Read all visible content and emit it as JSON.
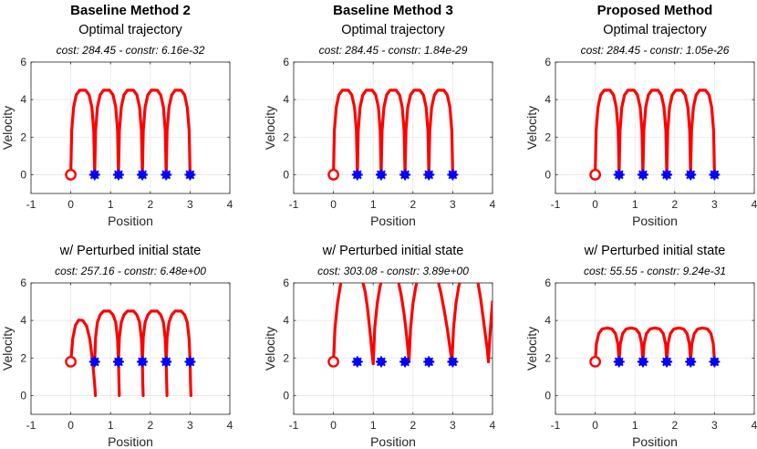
{
  "chart_data": [
    {
      "type": "line",
      "method_title": "Baseline Method 2",
      "title": "Optimal trajectory",
      "annotation": "cost: 284.45 - constr: 6.16e-32",
      "xlabel": "Position",
      "ylabel": "Velocity",
      "xlim": [
        -1,
        4
      ],
      "ylim": [
        -1,
        6
      ],
      "xticks": [
        "-1",
        "0",
        "1",
        "2",
        "3",
        "4"
      ],
      "yticks": [
        "0",
        "2",
        "4",
        "6"
      ],
      "grid": true,
      "start": [
        0,
        0
      ],
      "markers": [
        [
          0.6,
          0
        ],
        [
          1.2,
          0
        ],
        [
          1.8,
          0
        ],
        [
          2.4,
          0
        ],
        [
          3.0,
          0
        ]
      ],
      "series": [
        {
          "name": "trajectory",
          "x": [
            0,
            0.023,
            0.07,
            0.138,
            0.223,
            0.3,
            0.377,
            0.462,
            0.53,
            0.577,
            0.6
          ],
          "y": [
            0,
            2.34,
            3.6,
            4.25,
            4.5,
            4.5,
            4.5,
            4.25,
            3.6,
            2.34,
            0
          ],
          "repeat": 5,
          "repeat_dx": 0.6,
          "clip_top": false
        }
      ]
    },
    {
      "type": "line",
      "method_title": "Baseline Method 3",
      "title": "Optimal trajectory",
      "annotation": "cost: 284.45 - constr: 1.84e-29",
      "xlabel": "Position",
      "ylabel": "Velocity",
      "xlim": [
        -1,
        4
      ],
      "ylim": [
        -1,
        6
      ],
      "xticks": [
        "-1",
        "0",
        "1",
        "2",
        "3",
        "4"
      ],
      "yticks": [
        "0",
        "2",
        "4",
        "6"
      ],
      "grid": true,
      "start": [
        0,
        0
      ],
      "markers": [
        [
          0.6,
          0
        ],
        [
          1.2,
          0
        ],
        [
          1.8,
          0
        ],
        [
          2.4,
          0
        ],
        [
          3.0,
          0
        ]
      ],
      "series": [
        {
          "name": "trajectory",
          "x": [
            0,
            0.023,
            0.07,
            0.138,
            0.223,
            0.3,
            0.377,
            0.462,
            0.53,
            0.577,
            0.6
          ],
          "y": [
            0,
            2.34,
            3.6,
            4.25,
            4.5,
            4.5,
            4.5,
            4.25,
            3.6,
            2.34,
            0
          ],
          "repeat": 5,
          "repeat_dx": 0.6,
          "clip_top": false
        }
      ]
    },
    {
      "type": "line",
      "method_title": "Proposed Method",
      "title": "Optimal trajectory",
      "annotation": "cost: 284.45 - constr: 1.05e-26",
      "xlabel": "Position",
      "ylabel": "Velocity",
      "xlim": [
        -1,
        4
      ],
      "ylim": [
        -1,
        6
      ],
      "xticks": [
        "-1",
        "0",
        "1",
        "2",
        "3",
        "4"
      ],
      "yticks": [
        "0",
        "2",
        "4",
        "6"
      ],
      "grid": true,
      "start": [
        0,
        0
      ],
      "markers": [
        [
          0.6,
          0
        ],
        [
          1.2,
          0
        ],
        [
          1.8,
          0
        ],
        [
          2.4,
          0
        ],
        [
          3.0,
          0
        ]
      ],
      "series": [
        {
          "name": "trajectory",
          "x": [
            0,
            0.023,
            0.07,
            0.138,
            0.223,
            0.3,
            0.377,
            0.462,
            0.53,
            0.577,
            0.6
          ],
          "y": [
            0,
            2.34,
            3.6,
            4.25,
            4.5,
            4.5,
            4.5,
            4.25,
            3.6,
            2.34,
            0
          ],
          "repeat": 5,
          "repeat_dx": 0.6,
          "clip_top": false
        }
      ]
    },
    {
      "type": "line",
      "method_title": "",
      "title": "w/ Perturbed initial state",
      "annotation": "cost: 257.16 - constr: 6.48e+00",
      "xlabel": "Position",
      "ylabel": "Velocity",
      "xlim": [
        -1,
        4
      ],
      "ylim": [
        -1,
        6
      ],
      "xticks": [
        "-1",
        "0",
        "1",
        "2",
        "3",
        "4"
      ],
      "yticks": [
        "0",
        "2",
        "4",
        "6"
      ],
      "grid": true,
      "start": [
        0,
        1.8
      ],
      "markers": [
        [
          0.6,
          1.8
        ],
        [
          1.2,
          1.8
        ],
        [
          1.8,
          1.8
        ],
        [
          2.4,
          1.8
        ],
        [
          3.0,
          1.8
        ]
      ],
      "series": [
        {
          "name": "segment-1",
          "x": [
            0,
            0.05,
            0.12,
            0.2,
            0.3,
            0.4,
            0.48,
            0.55,
            0.6,
            0.62
          ],
          "y": [
            1.8,
            3.05,
            3.75,
            4.02,
            4.0,
            3.7,
            3.0,
            1.8,
            0.6,
            0
          ]
        },
        {
          "name": "segment-2",
          "x": [
            0.6,
            0.623,
            0.67,
            0.738,
            0.823,
            0.9,
            0.977,
            1.062,
            1.13,
            1.177,
            1.2,
            1.21,
            1.22
          ],
          "y": [
            1.8,
            3.1,
            3.9,
            4.3,
            4.5,
            4.5,
            4.5,
            4.3,
            3.9,
            3.0,
            1.8,
            0.8,
            0
          ]
        },
        {
          "name": "segment-3",
          "x": [
            1.2,
            1.223,
            1.27,
            1.338,
            1.423,
            1.5,
            1.577,
            1.662,
            1.73,
            1.777,
            1.8,
            1.81,
            1.82
          ],
          "y": [
            1.8,
            3.1,
            3.9,
            4.3,
            4.5,
            4.5,
            4.5,
            4.3,
            3.9,
            3.0,
            1.8,
            0.8,
            0
          ]
        },
        {
          "name": "segment-4",
          "x": [
            1.8,
            1.823,
            1.87,
            1.938,
            2.023,
            2.1,
            2.177,
            2.262,
            2.33,
            2.377,
            2.4,
            2.41,
            2.42
          ],
          "y": [
            1.8,
            3.1,
            3.9,
            4.3,
            4.5,
            4.5,
            4.5,
            4.3,
            3.9,
            3.0,
            1.8,
            0.8,
            0
          ]
        },
        {
          "name": "segment-5",
          "x": [
            2.4,
            2.423,
            2.47,
            2.538,
            2.623,
            2.7,
            2.777,
            2.862,
            2.93,
            2.977,
            3.0,
            3.01,
            3.02
          ],
          "y": [
            1.8,
            3.1,
            3.9,
            4.3,
            4.5,
            4.5,
            4.5,
            4.3,
            3.9,
            3.0,
            1.8,
            0.8,
            0
          ]
        }
      ]
    },
    {
      "type": "line",
      "method_title": "",
      "title": "w/ Perturbed initial state",
      "annotation": "cost: 303.08 - constr: 3.89e+00",
      "xlabel": "Position",
      "ylabel": "Velocity",
      "xlim": [
        -1,
        4
      ],
      "ylim": [
        -1,
        6
      ],
      "xticks": [
        "-1",
        "0",
        "1",
        "2",
        "3",
        "4"
      ],
      "yticks": [
        "0",
        "2",
        "4",
        "6"
      ],
      "grid": true,
      "start": [
        0,
        1.8
      ],
      "markers": [
        [
          0.6,
          1.8
        ],
        [
          1.2,
          1.8
        ],
        [
          1.8,
          1.8
        ],
        [
          2.4,
          1.8
        ],
        [
          3.0,
          1.8
        ]
      ],
      "series": [
        {
          "name": "segment-1",
          "x": [
            0,
            0.04,
            0.1,
            0.17,
            0.2
          ],
          "y": [
            1.8,
            3.6,
            4.9,
            5.8,
            6.2
          ]
        },
        {
          "name": "segment-2",
          "x": [
            0.72,
            0.8,
            0.86,
            0.92,
            0.97,
            1.0
          ],
          "y": [
            6.2,
            5.5,
            4.6,
            3.4,
            2.3,
            1.7
          ]
        },
        {
          "name": "segment-3",
          "x": [
            1.0,
            1.04,
            1.1,
            1.17,
            1.22
          ],
          "y": [
            1.7,
            3.6,
            4.9,
            5.8,
            6.2
          ]
        },
        {
          "name": "segment-4",
          "x": [
            1.62,
            1.7,
            1.78,
            1.84,
            1.88,
            1.9
          ],
          "y": [
            6.2,
            5.4,
            4.3,
            3.2,
            2.3,
            1.8
          ]
        },
        {
          "name": "segment-5",
          "x": [
            1.9,
            1.94,
            2.0,
            2.07,
            2.12
          ],
          "y": [
            1.8,
            3.6,
            4.9,
            5.8,
            6.2
          ]
        },
        {
          "name": "segment-6",
          "x": [
            2.62,
            2.7,
            2.78,
            2.86,
            2.92,
            2.96,
            2.98
          ],
          "y": [
            6.2,
            5.5,
            4.6,
            3.6,
            2.7,
            2.1,
            1.8
          ]
        },
        {
          "name": "segment-7",
          "x": [
            2.98,
            3.02,
            3.08,
            3.15,
            3.2
          ],
          "y": [
            1.8,
            3.6,
            4.9,
            5.8,
            6.2
          ]
        },
        {
          "name": "segment-8",
          "x": [
            3.62,
            3.7,
            3.78,
            3.86,
            3.9
          ],
          "y": [
            6.2,
            5.2,
            3.9,
            2.6,
            1.8
          ]
        },
        {
          "name": "segment-9",
          "x": [
            3.9,
            3.93,
            3.97,
            4.0
          ],
          "y": [
            1.8,
            3.0,
            4.2,
            5.0
          ]
        }
      ]
    },
    {
      "type": "line",
      "method_title": "",
      "title": "w/ Perturbed initial state",
      "annotation": "cost: 55.55 - constr: 9.24e-31",
      "xlabel": "Position",
      "ylabel": "Velocity",
      "xlim": [
        -1,
        4
      ],
      "ylim": [
        -1,
        6
      ],
      "xticks": [
        "-1",
        "0",
        "1",
        "2",
        "3",
        "4"
      ],
      "yticks": [
        "0",
        "2",
        "4",
        "6"
      ],
      "grid": true,
      "start": [
        0,
        1.8
      ],
      "markers": [
        [
          0.6,
          1.8
        ],
        [
          1.2,
          1.8
        ],
        [
          1.8,
          1.8
        ],
        [
          2.4,
          1.8
        ],
        [
          3.0,
          1.8
        ]
      ],
      "series": [
        {
          "name": "trajectory",
          "x": [
            0,
            0.03,
            0.09,
            0.18,
            0.3,
            0.42,
            0.51,
            0.57,
            0.6
          ],
          "y": [
            1.8,
            2.75,
            3.3,
            3.55,
            3.6,
            3.55,
            3.3,
            2.75,
            1.8
          ],
          "repeat": 5,
          "repeat_dx": 0.6,
          "clip_top": false
        }
      ]
    }
  ],
  "colors": {
    "trajectory": "#ff0000",
    "start_marker": "#ff0000",
    "waypoint_marker": "#0000ff",
    "grid": "#e6e6e6",
    "axes": "#262626"
  }
}
